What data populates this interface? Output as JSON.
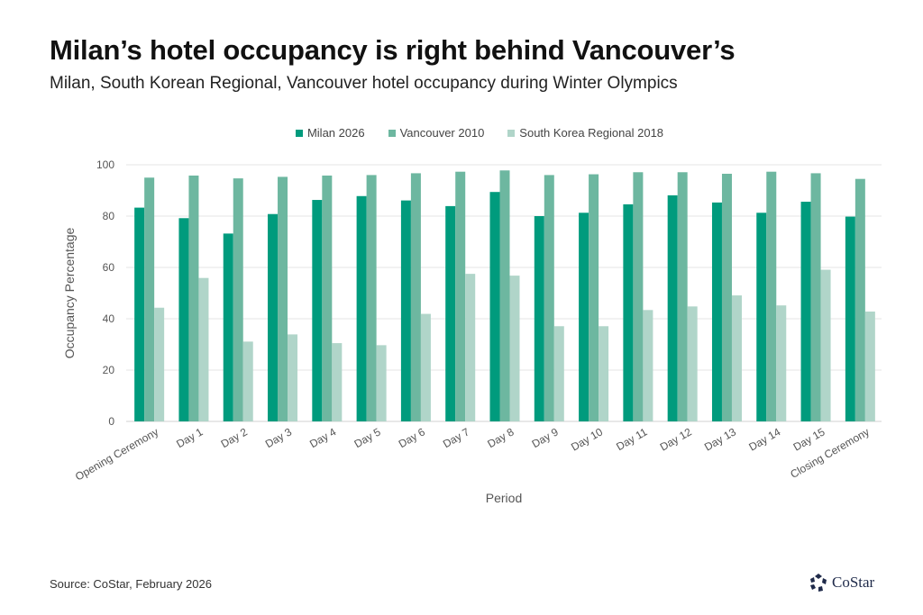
{
  "title": "Milan’s hotel occupancy is right behind Vancouver’s",
  "subtitle": "Milan, South Korean Regional, Vancouver hotel occupancy during Winter Olympics",
  "source": "Source: CoStar, February 2026",
  "logo": "CoStar",
  "chart_data": {
    "type": "bar",
    "xlabel": "Period",
    "ylabel": "Occupancy Percentage",
    "ylim": [
      0,
      100
    ],
    "yticks": [
      0,
      20,
      40,
      60,
      80,
      100
    ],
    "grid": true,
    "legend_position": "top",
    "categories": [
      "Opening Ceremony",
      "Day 1",
      "Day 2",
      "Day 3",
      "Day 4",
      "Day 5",
      "Day 6",
      "Day 7",
      "Day 8",
      "Day 9",
      "Day 10",
      "Day 11",
      "Day 12",
      "Day 13",
      "Day 14",
      "Day 15",
      "Closing Ceremony"
    ],
    "series": [
      {
        "name": "Milan 2026",
        "color": "#009b7d",
        "values": [
          83.3,
          79.2,
          73.2,
          80.8,
          86.3,
          87.8,
          86.1,
          83.9,
          89.4,
          80.0,
          81.3,
          84.6,
          88.1,
          85.3,
          81.3,
          85.6,
          79.8
        ]
      },
      {
        "name": "Vancouver 2010",
        "color": "#6db7a0",
        "values": [
          95.0,
          95.8,
          94.7,
          95.3,
          95.8,
          96.0,
          96.7,
          97.3,
          97.8,
          96.0,
          96.3,
          97.1,
          97.1,
          96.5,
          97.3,
          96.7,
          94.5
        ]
      },
      {
        "name": "South Korea Regional 2018",
        "color": "#b0d5c9",
        "values": [
          44.3,
          55.9,
          31.1,
          33.9,
          30.5,
          29.7,
          41.9,
          57.5,
          56.8,
          37.1,
          37.1,
          43.4,
          44.8,
          49.1,
          45.2,
          59.1,
          42.8
        ]
      }
    ]
  }
}
